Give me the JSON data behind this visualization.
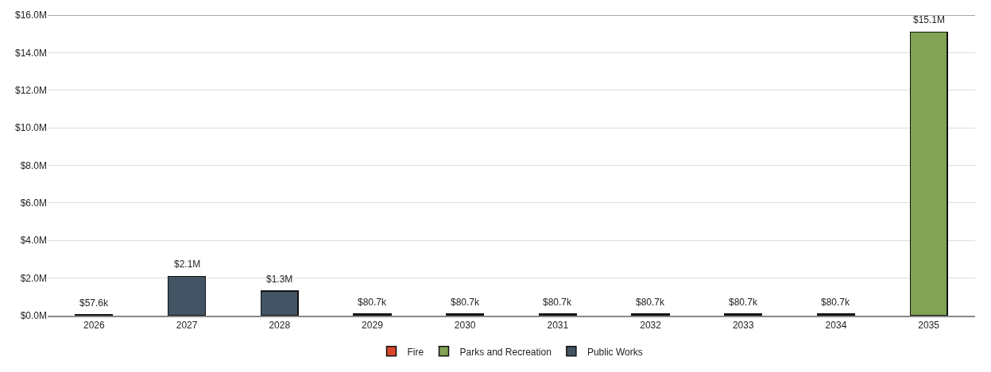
{
  "chart_data": {
    "type": "bar",
    "stacked": true,
    "categories": [
      "2026",
      "2027",
      "2028",
      "2029",
      "2030",
      "2031",
      "2032",
      "2033",
      "2034",
      "2035"
    ],
    "series": [
      {
        "name": "Fire",
        "color": "#d9472b",
        "values": [
          0.0576,
          null,
          null,
          0.0807,
          0.0807,
          0.0807,
          0.0807,
          0.0807,
          0.0807,
          null
        ]
      },
      {
        "name": "Parks and Recreation",
        "color": "#82a353",
        "values": [
          null,
          null,
          null,
          null,
          null,
          null,
          null,
          null,
          null,
          15.1
        ]
      },
      {
        "name": "Public Works",
        "color": "#435465",
        "values": [
          null,
          2.1,
          1.3,
          null,
          null,
          null,
          null,
          null,
          null,
          null
        ]
      }
    ],
    "totals": [
      "$57.6k",
      "$2.1M",
      "$1.3M",
      "$80.7k",
      "$80.7k",
      "$80.7k",
      "$80.7k",
      "$80.7k",
      "$80.7k",
      "$15.1M"
    ],
    "ylim": [
      0,
      16
    ],
    "yticks": [
      {
        "value": 0,
        "label": "$0.0M"
      },
      {
        "value": 2,
        "label": "$2.0M"
      },
      {
        "value": 4,
        "label": "$4.0M"
      },
      {
        "value": 6,
        "label": "$6.0M"
      },
      {
        "value": 8,
        "label": "$8.0M"
      },
      {
        "value": 10,
        "label": "$10.0M"
      },
      {
        "value": 12,
        "label": "$12.0M"
      },
      {
        "value": 14,
        "label": "$14.0M"
      },
      {
        "value": 16,
        "label": "$16.0M"
      }
    ],
    "grid": "y",
    "legend": "bottom"
  }
}
